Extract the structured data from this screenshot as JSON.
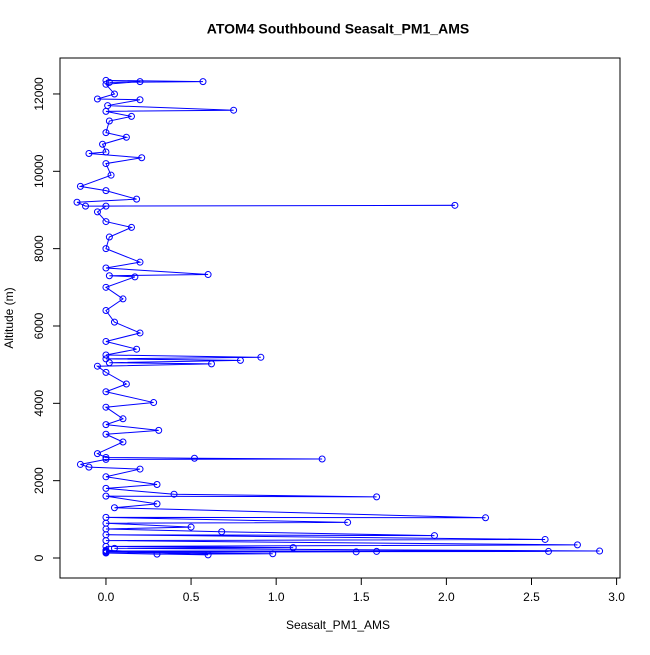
{
  "chart_data": {
    "type": "line",
    "title": "ATOM4 Southbound Seasalt_PM1_AMS",
    "x_label": "Seasalt_PM1_AMS",
    "y_label": "Altitude (m)",
    "color": "#0000ff",
    "x": [
      0.0,
      0.57,
      0.02,
      0.2,
      0.0,
      0.05,
      -0.05,
      0.2,
      0.01,
      0.75,
      0.0,
      0.15,
      0.02,
      0.0,
      0.12,
      -0.02,
      0.0,
      -0.1,
      0.21,
      0.0,
      0.03,
      -0.15,
      0.0,
      0.18,
      -0.17,
      -0.12,
      2.05,
      0.0,
      -0.05,
      0.0,
      0.15,
      0.02,
      0.0,
      0.2,
      0.0,
      0.6,
      0.02,
      0.17,
      0.0,
      0.1,
      0.0,
      0.05,
      0.2,
      0.0,
      0.18,
      0.0,
      0.91,
      0.0,
      0.79,
      0.02,
      0.62,
      -0.05,
      0.0,
      0.12,
      0.0,
      0.28,
      0.0,
      0.1,
      0.0,
      0.31,
      0.0,
      0.1,
      -0.05,
      0.0,
      0.52,
      1.27,
      0.0,
      -0.15,
      -0.1,
      0.2,
      0.0,
      0.3,
      0.0,
      0.4,
      1.59,
      0.0,
      0.3,
      0.05,
      2.23,
      0.0,
      1.42,
      0.0,
      0.5,
      0.0,
      0.68,
      1.93,
      0.0,
      2.58,
      0.0,
      2.77,
      0.0,
      1.1,
      0.05,
      2.9,
      0.0,
      2.6,
      0.0,
      1.59,
      1.47,
      0.0,
      0.98,
      0.3,
      0.0,
      0.6,
      0.0
    ],
    "values": [
      12350,
      12320,
      12300,
      12320,
      12250,
      12000,
      11870,
      11850,
      11700,
      11580,
      11550,
      11420,
      11300,
      11000,
      10880,
      10700,
      10500,
      10460,
      10350,
      10200,
      9900,
      9610,
      9500,
      9280,
      9200,
      9100,
      9120,
      9100,
      8950,
      8700,
      8550,
      8300,
      8000,
      7650,
      7500,
      7330,
      7300,
      7270,
      7000,
      6700,
      6400,
      6100,
      5820,
      5600,
      5400,
      5250,
      5190,
      5150,
      5110,
      5050,
      5020,
      4960,
      4800,
      4500,
      4300,
      4020,
      3900,
      3600,
      3450,
      3300,
      3200,
      3000,
      2700,
      2600,
      2580,
      2560,
      2550,
      2420,
      2350,
      2300,
      2100,
      1900,
      1800,
      1650,
      1580,
      1600,
      1400,
      1300,
      1040,
      1050,
      920,
      900,
      800,
      750,
      680,
      580,
      600,
      480,
      450,
      340,
      300,
      270,
      250,
      180,
      180,
      170,
      160,
      170,
      160,
      150,
      110,
      100,
      130,
      80,
      200
    ],
    "xlim": [
      -0.27,
      3.02
    ],
    "ylim": [
      -517,
      12930
    ],
    "xticks": [
      {
        "value": 0,
        "label": "0.0"
      },
      {
        "value": 0.5,
        "label": "0.5"
      },
      {
        "value": 1,
        "label": "1.0"
      },
      {
        "value": 1.5,
        "label": "1.5"
      },
      {
        "value": 2,
        "label": "2.0"
      },
      {
        "value": 2.5,
        "label": "2.5"
      },
      {
        "value": 3,
        "label": "3.0"
      }
    ],
    "yticks": [
      0,
      2000,
      4000,
      6000,
      8000,
      10000,
      12000
    ]
  }
}
